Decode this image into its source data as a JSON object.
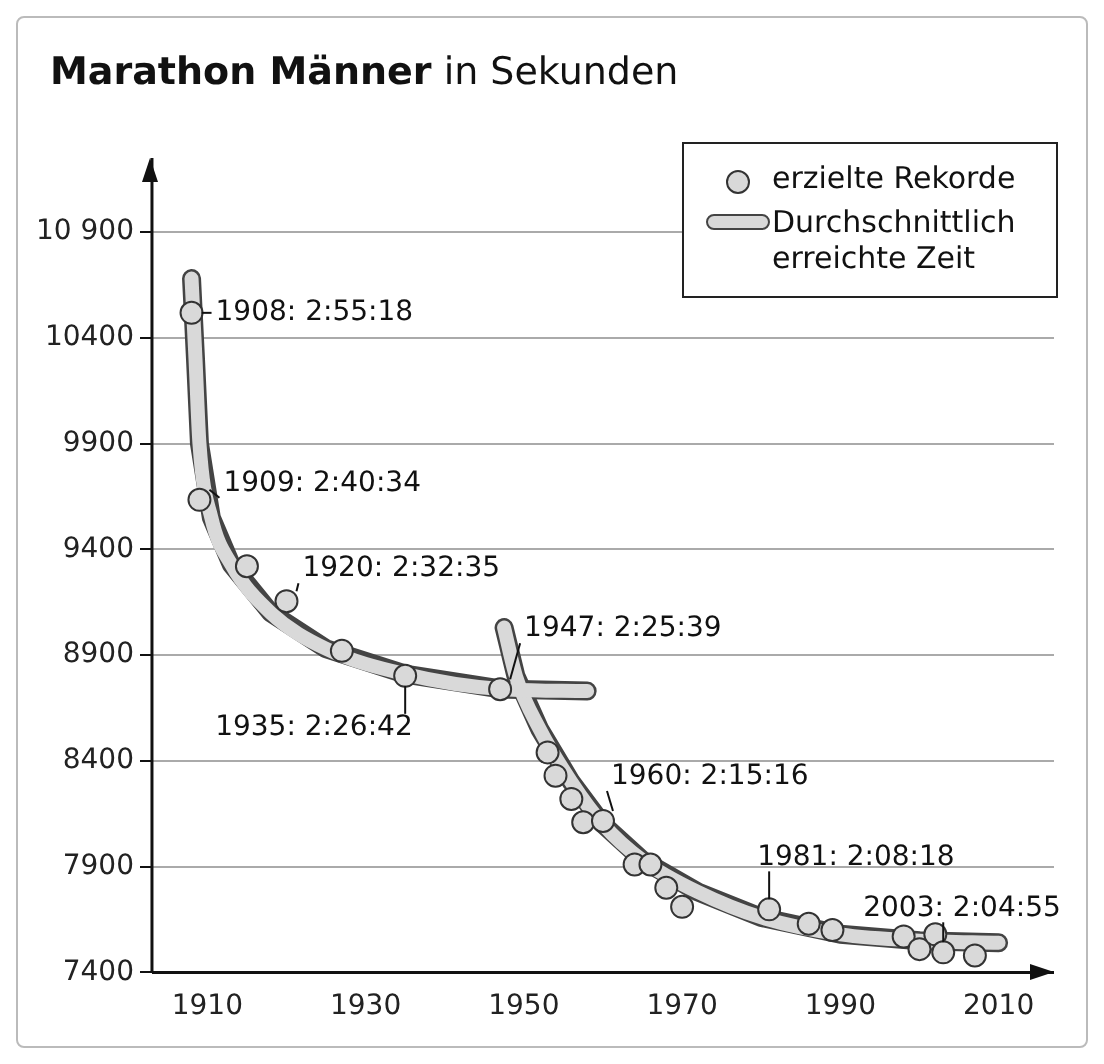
{
  "chart_data": {
    "type": "scatter",
    "title": "Marathon Männer",
    "subtitle": "in Sekunden",
    "xlim": [
      1903,
      2017
    ],
    "xticks": [
      1910,
      1930,
      1950,
      1970,
      1990,
      2010
    ],
    "ylim": [
      7400,
      11250
    ],
    "yticks": [
      7400,
      7900,
      8400,
      8900,
      9400,
      9900,
      10400,
      {
        "value": 10900,
        "label": "10 900"
      }
    ],
    "grid": "y",
    "legend": "top right",
    "series": [
      {
        "name": "erzielte Rekorde",
        "marker": "circle",
        "color": "#d9d9d9",
        "x": [
          1908,
          1909,
          1915,
          1920,
          1927,
          1935,
          1947,
          1953,
          1954,
          1956,
          1957.5,
          1960,
          1964,
          1966,
          1968,
          1970,
          1981,
          1986,
          1989,
          1998,
          2000,
          2002,
          2003,
          2007
        ],
        "values": [
          10518,
          9634,
          9320,
          9155,
          8920,
          8802,
          8739,
          8440,
          8330,
          8220,
          8110,
          8116,
          7910,
          7910,
          7800,
          7710,
          7698,
          7630,
          7600,
          7570,
          7510,
          7580,
          7495,
          7480
        ]
      },
      {
        "name": "Durchschnittlich erreichte Zeit",
        "type": "line",
        "color": "#d9d9d9",
        "x": [
          1908,
          1908.5,
          1909,
          1910.5,
          1913,
          1918,
          1925,
          1935,
          1947,
          1958
        ],
        "values": [
          10680,
          10300,
          9900,
          9550,
          9330,
          9100,
          8930,
          8810,
          8740,
          8730
        ]
      },
      {
        "type": "line",
        "color": "#d9d9d9",
        "x": [
          1947.5,
          1949,
          1952,
          1956,
          1960,
          1965,
          1972,
          1980,
          1990,
          2000,
          2010
        ],
        "values": [
          9030,
          8800,
          8550,
          8300,
          8100,
          7930,
          7780,
          7660,
          7580,
          7550,
          7540
        ]
      }
    ],
    "annotations": [
      {
        "text": "1908: 2:55:18",
        "x": 1908,
        "y": 10518
      },
      {
        "text": "1909: 2:40:34",
        "x": 1909,
        "y": 9634
      },
      {
        "text": "1920: 2:32:35",
        "x": 1920,
        "y": 9155
      },
      {
        "text": "1935: 2:26:42",
        "x": 1935,
        "y": 8802
      },
      {
        "text": "1947: 2:25:39",
        "x": 1947,
        "y": 8739
      },
      {
        "text": "1960: 2:15:16",
        "x": 1960,
        "y": 8116
      },
      {
        "text": "1981: 2:08:18",
        "x": 1981,
        "y": 7698
      },
      {
        "text": "2003: 2:04:55",
        "x": 2003,
        "y": 7495
      }
    ]
  }
}
